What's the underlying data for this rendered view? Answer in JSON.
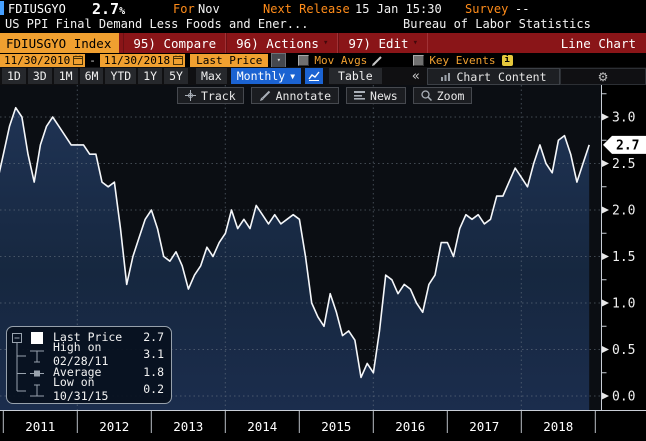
{
  "header": {
    "ticker": "FDIUSGYO",
    "value": "2.7",
    "value_suffix": "%",
    "for_label": "For",
    "for_value": "Nov",
    "next_release_label": "Next Release",
    "next_release_value": "15 Jan 15:30",
    "survey_label": "Survey",
    "survey_value": "--",
    "description": "US PPI Final Demand Less Foods and Ener...",
    "source": "Bureau of Labor Statistics"
  },
  "command_bar": {
    "security_tag": "FDIUSGYO Index",
    "compare": "95) Compare",
    "actions": "96) Actions",
    "edit": "97) Edit",
    "chart_type": "Line Chart"
  },
  "settings": {
    "date_from": "11/30/2010",
    "date_to": "11/30/2018",
    "field_select": "Last Price",
    "mov_avgs_label": "Mov Avgs",
    "key_events_label": "Key Events"
  },
  "periods": {
    "tabs": [
      "1D",
      "3D",
      "1M",
      "6M",
      "YTD",
      "1Y",
      "5Y"
    ],
    "max_tab": "Max",
    "frequency": "Monthly",
    "table": "Table",
    "collapse": "«",
    "chart_content": "Chart Content"
  },
  "chart_tools": {
    "track": "Track",
    "annotate": "Annotate",
    "news": "News",
    "zoom": "Zoom"
  },
  "legend": {
    "rows": [
      {
        "label": "Last Price",
        "value": "2.7"
      },
      {
        "label": "High on 02/28/11",
        "value": "3.1"
      },
      {
        "label": "Average",
        "value": "1.8"
      },
      {
        "label": "Low on 10/31/15",
        "value": "0.2"
      }
    ]
  },
  "colors": {
    "amber": "#f0a030",
    "orange_label": "#ff8c1a",
    "command_bar_red": "#8a1518",
    "blue_button": "#1b63d2",
    "accent_blue": "#46a0ff",
    "line": "#f5f7fa",
    "fill_top": "#1f3354",
    "fill_bottom": "#1b2d4d",
    "grid": "#6f7a87"
  },
  "chart_data": {
    "type": "line",
    "title": "FDIUSGYO Index - US PPI Final Demand Less Foods and Energy (YoY %)",
    "frequency": "monthly",
    "x_start": "2010-11",
    "x_end": "2018-11",
    "series": [
      {
        "name": "Last Price",
        "values": [
          2.3,
          2.6,
          2.9,
          3.1,
          3.0,
          2.6,
          2.3,
          2.7,
          2.9,
          3.0,
          2.9,
          2.8,
          2.7,
          2.7,
          2.7,
          2.6,
          2.6,
          2.3,
          2.25,
          2.3,
          1.8,
          1.2,
          1.5,
          1.7,
          1.9,
          2.0,
          1.8,
          1.5,
          1.45,
          1.55,
          1.4,
          1.15,
          1.3,
          1.4,
          1.6,
          1.5,
          1.65,
          1.75,
          2.0,
          1.8,
          1.9,
          1.8,
          2.05,
          1.95,
          1.85,
          1.95,
          1.85,
          1.9,
          1.95,
          1.9,
          1.5,
          1.0,
          0.85,
          0.75,
          1.1,
          0.9,
          0.65,
          0.7,
          0.6,
          0.2,
          0.35,
          0.25,
          0.7,
          1.3,
          1.25,
          1.1,
          1.2,
          1.15,
          1.0,
          0.9,
          1.2,
          1.3,
          1.65,
          1.65,
          1.5,
          1.8,
          1.95,
          1.9,
          1.95,
          1.85,
          1.9,
          2.15,
          2.15,
          2.3,
          2.45,
          2.35,
          2.25,
          2.5,
          2.7,
          2.5,
          2.4,
          2.75,
          2.8,
          2.6,
          2.3,
          2.5,
          2.7
        ]
      }
    ],
    "x_tick_years": [
      "2011",
      "2012",
      "2013",
      "2014",
      "2015",
      "2016",
      "2017",
      "2018"
    ],
    "y_ticks": [
      0.0,
      0.5,
      1.0,
      1.5,
      2.0,
      2.5,
      3.0
    ],
    "ylim": [
      0,
      3.25
    ],
    "grid": "dashed",
    "last_price_marker": "2.7",
    "stats": {
      "last": 2.7,
      "high": {
        "date": "02/28/11",
        "value": 3.1
      },
      "average": 1.8,
      "low": {
        "date": "10/31/15",
        "value": 0.2
      }
    },
    "legend_position": "bottom-left"
  }
}
